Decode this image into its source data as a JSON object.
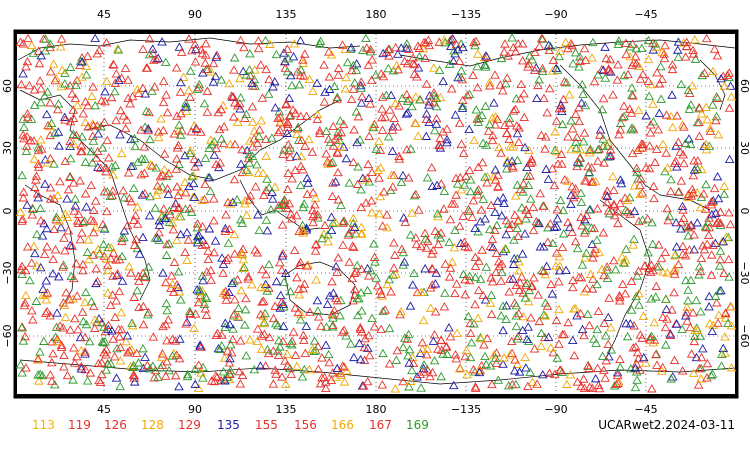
{
  "map": {
    "top_ticks": [
      "45",
      "90",
      "135",
      "180",
      "−135",
      "−90",
      "−45"
    ],
    "bottom_ticks": [
      "45",
      "90",
      "135",
      "180",
      "−135",
      "−90",
      "−45"
    ],
    "left_ticks": [
      "60",
      "30",
      "0",
      "−30",
      "−60"
    ],
    "right_ticks": [
      "60",
      "30",
      "0",
      "−30",
      "−60"
    ],
    "grid": true,
    "grid_style": "dotted",
    "marker": "open-triangle",
    "dataset_label": "UCARwet2.2024-03-11"
  },
  "legend": [
    {
      "label": "113",
      "color": "#f0b400"
    },
    {
      "label": "119",
      "color": "#e8312a"
    },
    {
      "label": "126",
      "color": "#e8312a"
    },
    {
      "label": "128",
      "color": "#f0a800"
    },
    {
      "label": "129",
      "color": "#e8312a"
    },
    {
      "label": "135",
      "color": "#1c1ca8"
    },
    {
      "label": "155",
      "color": "#e8312a"
    },
    {
      "label": "156",
      "color": "#e8312a"
    },
    {
      "label": "166",
      "color": "#f0a800"
    },
    {
      "label": "167",
      "color": "#e8312a"
    },
    {
      "label": "169",
      "color": "#2e9a2e"
    }
  ]
}
